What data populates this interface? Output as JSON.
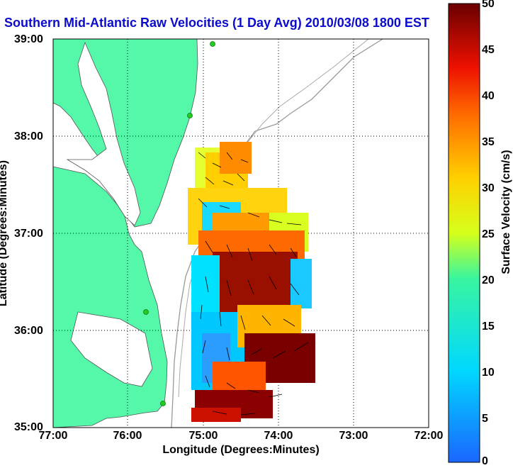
{
  "figure": {
    "title": "Southern Mid-Atlantic Raw Velocities (1 Day Avg) 2010/03/08 1800 EST",
    "xlabel": "Longitude (Degrees:Minutes)",
    "ylabel": "Latitude (Degrees:Minutes)",
    "xticks": [
      "77:00",
      "76:00",
      "75:00",
      "74:00",
      "73:00",
      "72:00"
    ],
    "yticks": [
      "39:00",
      "38:00",
      "37:00",
      "36:00",
      "35:00"
    ]
  },
  "colorbar": {
    "label": "Surface Velocity (cm/s)",
    "ticks": [
      "50",
      "45",
      "40",
      "35",
      "30",
      "25",
      "20",
      "15",
      "10",
      "5",
      "0"
    ],
    "range": [
      0,
      50
    ]
  },
  "colors": {
    "title": "#0b0bcc",
    "land": "#55f7a8",
    "coastline_contour": "#999999",
    "station": "#22cc22"
  }
}
